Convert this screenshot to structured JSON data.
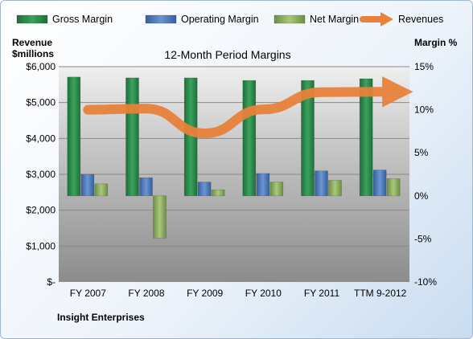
{
  "chart_data": {
    "type": "bar",
    "title": "12-Month Period Margins",
    "left_axis_label": [
      "Revenue",
      "$millions"
    ],
    "right_axis_label": "Margin %",
    "footer": "Insight Enterprises",
    "categories": [
      "FY 2007",
      "FY 2008",
      "FY 2009",
      "FY 2010",
      "FY 2011",
      "TTM 9-2012"
    ],
    "left_axis": {
      "min": 0,
      "max": 6000,
      "step": 1000,
      "tick_labels": [
        "$-",
        "$1,000",
        "$2,000",
        "$3,000",
        "$4,000",
        "$5,000",
        "$6,000"
      ]
    },
    "right_axis": {
      "min": -10,
      "max": 15,
      "step": 5,
      "tick_labels": [
        "-10%",
        "-5%",
        "0%",
        "5%",
        "10%",
        "15%"
      ]
    },
    "legend_position": "top",
    "series": [
      {
        "name": "Gross Margin",
        "type": "bar",
        "axis": "right",
        "color": "#2e8b4e",
        "values": [
          13.8,
          13.7,
          13.7,
          13.4,
          13.4,
          13.6
        ]
      },
      {
        "name": "Operating Margin",
        "type": "bar",
        "axis": "right",
        "color": "#4f7fc1",
        "values": [
          2.5,
          2.1,
          1.6,
          2.6,
          2.9,
          3.0
        ]
      },
      {
        "name": "Net Margin",
        "type": "bar",
        "axis": "right",
        "color": "#8fb260",
        "values": [
          1.4,
          -4.9,
          0.7,
          1.6,
          1.8,
          2.0
        ]
      },
      {
        "name": "Revenues",
        "type": "line",
        "axis": "left",
        "color": "#e8813a",
        "values": [
          4800,
          4830,
          4140,
          4810,
          5290,
          5300
        ]
      }
    ]
  }
}
